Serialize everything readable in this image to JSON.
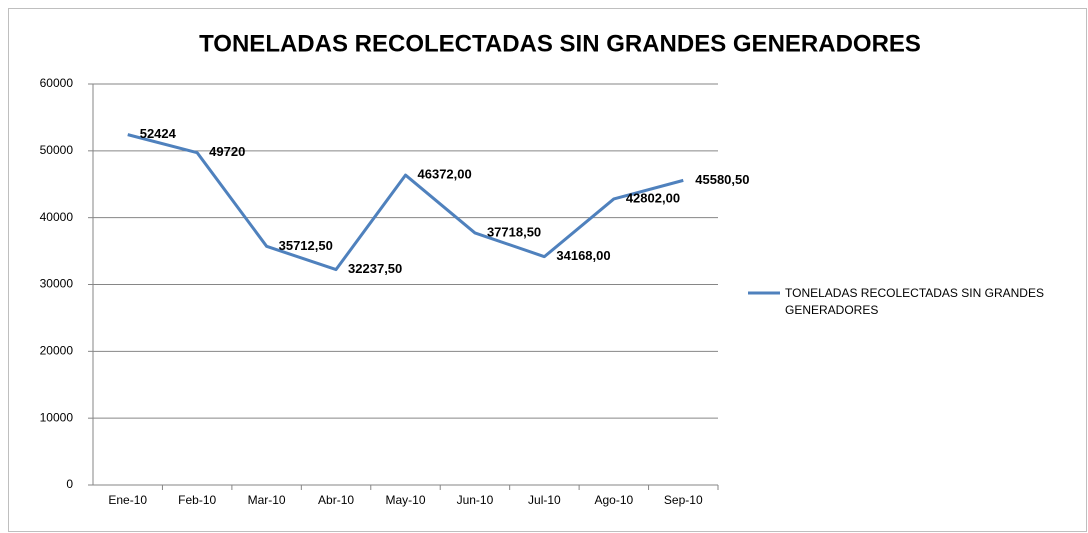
{
  "chart_data": {
    "type": "line",
    "title": "TONELADAS RECOLECTADAS SIN GRANDES GENERADORES",
    "categories": [
      "Ene-10",
      "Feb-10",
      "Mar-10",
      "Abr-10",
      "May-10",
      "Jun-10",
      "Jul-10",
      "Ago-10",
      "Sep-10"
    ],
    "series": [
      {
        "name": "TONELADAS RECOLECTADAS SIN GRANDES GENERADORES",
        "color": "#4f81bd",
        "values": [
          52424,
          49720,
          35712.5,
          32237.5,
          46372,
          37718.5,
          34168,
          42802,
          45580.5
        ],
        "value_labels": [
          "52424",
          "49720",
          "35712,50",
          "32237,50",
          "46372,00",
          "37718,50",
          "34168,00",
          "42802,00",
          "45580,50"
        ]
      }
    ],
    "ylim": [
      0,
      60000
    ],
    "yticks": [
      0,
      10000,
      20000,
      30000,
      40000,
      50000,
      60000
    ],
    "grid": true,
    "legend": "right"
  }
}
